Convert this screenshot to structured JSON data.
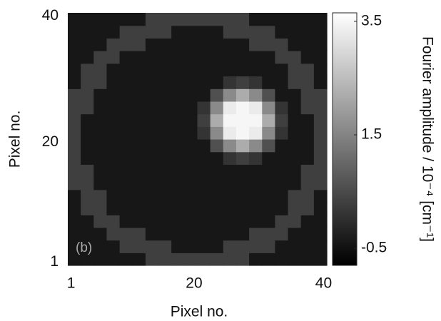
{
  "chart_data": {
    "type": "heatmap",
    "xlabel": "Pixel no.",
    "ylabel": "Pixel no.",
    "colorbar_label": "Fourier amplitude / 10⁻⁴ [cm⁻¹]",
    "annotation": "(b)",
    "xlim": [
      0.5,
      40.5
    ],
    "ylim": [
      0.5,
      40.5
    ],
    "xticks": [
      1,
      20,
      40
    ],
    "yticks": [
      1,
      20,
      40
    ],
    "clim": [
      -0.8,
      3.65
    ],
    "cticks": [
      -0.5,
      1.5,
      3.5
    ],
    "colormap": "gray",
    "grid": false,
    "z": [
      [
        -0.4,
        -0.4,
        -0.4,
        -0.4,
        -0.4,
        -0.4,
        0.3,
        0.3,
        0.3,
        0.3,
        0.3,
        0.3,
        0.3,
        0.3,
        -0.4,
        -0.4,
        -0.4,
        -0.4,
        -0.4,
        -0.4
      ],
      [
        -0.4,
        -0.4,
        -0.4,
        -0.4,
        0.3,
        0.3,
        0.3,
        0.3,
        -0.4,
        -0.4,
        -0.4,
        -0.4,
        0.3,
        0.3,
        0.3,
        0.3,
        -0.4,
        -0.4,
        -0.4,
        -0.4
      ],
      [
        -0.4,
        -0.4,
        -0.4,
        0.3,
        0.3,
        0.3,
        -0.4,
        -0.4,
        -0.4,
        -0.4,
        -0.4,
        -0.4,
        -0.4,
        -0.4,
        0.3,
        0.3,
        0.3,
        -0.4,
        -0.4,
        -0.4
      ],
      [
        -0.4,
        -0.4,
        0.3,
        0.3,
        -0.4,
        -0.4,
        -0.4,
        -0.4,
        -0.4,
        -0.4,
        -0.4,
        -0.4,
        -0.4,
        -0.4,
        -0.4,
        -0.4,
        0.3,
        0.3,
        -0.4,
        -0.4
      ],
      [
        -0.4,
        0.3,
        0.3,
        -0.4,
        -0.4,
        -0.4,
        -0.4,
        -0.4,
        -0.4,
        -0.4,
        -0.4,
        -0.4,
        -0.4,
        -0.4,
        -0.4,
        -0.4,
        -0.4,
        0.3,
        0.3,
        -0.4
      ],
      [
        -0.4,
        0.3,
        0.3,
        -0.4,
        -0.4,
        -0.4,
        -0.4,
        -0.4,
        -0.4,
        -0.4,
        -0.4,
        -0.4,
        -0.4,
        -0.4,
        -0.4,
        -0.4,
        -0.4,
        0.3,
        0.3,
        -0.4
      ],
      [
        0.3,
        0.3,
        -0.4,
        -0.4,
        -0.4,
        -0.4,
        -0.4,
        -0.4,
        -0.4,
        -0.4,
        -0.4,
        -0.4,
        -0.4,
        -0.4,
        -0.4,
        -0.4,
        -0.4,
        -0.4,
        0.3,
        0.3
      ],
      [
        0.3,
        0.3,
        -0.4,
        -0.4,
        -0.4,
        -0.4,
        -0.4,
        -0.4,
        -0.4,
        -0.4,
        -0.4,
        -0.4,
        -0.4,
        -0.4,
        -0.4,
        -0.4,
        -0.4,
        -0.4,
        0.3,
        0.3
      ],
      [
        0.3,
        -0.4,
        -0.4,
        -0.4,
        -0.4,
        -0.4,
        -0.4,
        -0.4,
        -0.4,
        -0.4,
        -0.4,
        -0.4,
        0.1,
        0.3,
        0.1,
        -0.4,
        -0.4,
        -0.4,
        -0.4,
        0.3
      ],
      [
        0.3,
        -0.4,
        -0.4,
        -0.4,
        -0.4,
        -0.4,
        -0.4,
        -0.4,
        -0.4,
        -0.4,
        -0.4,
        0.6,
        1.6,
        2.2,
        1.6,
        0.6,
        -0.4,
        -0.4,
        -0.4,
        0.3
      ],
      [
        0.3,
        -0.4,
        -0.4,
        -0.4,
        -0.4,
        -0.4,
        -0.4,
        -0.4,
        -0.4,
        -0.4,
        0.1,
        1.6,
        3.3,
        3.5,
        3.3,
        1.6,
        0.1,
        -0.4,
        -0.4,
        0.3
      ],
      [
        0.3,
        -0.4,
        -0.4,
        -0.4,
        -0.4,
        -0.4,
        -0.4,
        -0.4,
        -0.4,
        -0.4,
        0.3,
        2.2,
        3.5,
        3.5,
        3.5,
        2.2,
        0.3,
        -0.4,
        -0.4,
        0.3
      ],
      [
        0.3,
        0.3,
        -0.4,
        -0.4,
        -0.4,
        -0.4,
        -0.4,
        -0.4,
        -0.4,
        -0.4,
        0.1,
        1.6,
        3.3,
        3.5,
        3.3,
        1.6,
        0.1,
        -0.4,
        0.3,
        0.3
      ],
      [
        0.3,
        0.3,
        -0.4,
        -0.4,
        -0.4,
        -0.4,
        -0.4,
        -0.4,
        -0.4,
        -0.4,
        -0.4,
        0.6,
        1.6,
        2.2,
        1.6,
        0.6,
        -0.4,
        -0.4,
        0.3,
        0.3
      ],
      [
        -0.4,
        0.3,
        0.3,
        -0.4,
        -0.4,
        -0.4,
        -0.4,
        -0.4,
        -0.4,
        -0.4,
        -0.4,
        -0.4,
        0.1,
        0.3,
        0.1,
        -0.4,
        -0.4,
        0.3,
        0.3,
        -0.4
      ],
      [
        -0.4,
        0.3,
        0.3,
        -0.4,
        -0.4,
        -0.4,
        -0.4,
        -0.4,
        -0.4,
        -0.4,
        -0.4,
        -0.4,
        -0.4,
        -0.4,
        -0.4,
        -0.4,
        -0.4,
        0.3,
        0.3,
        -0.4
      ],
      [
        -0.4,
        -0.4,
        0.3,
        0.3,
        -0.4,
        -0.4,
        -0.4,
        -0.4,
        -0.4,
        -0.4,
        -0.4,
        -0.4,
        -0.4,
        -0.4,
        -0.4,
        -0.4,
        0.3,
        0.3,
        -0.4,
        -0.4
      ],
      [
        -0.4,
        -0.4,
        -0.4,
        0.3,
        0.3,
        0.3,
        -0.4,
        -0.4,
        -0.4,
        -0.4,
        -0.4,
        -0.4,
        -0.4,
        -0.4,
        0.3,
        0.3,
        0.3,
        -0.4,
        -0.4,
        -0.4
      ],
      [
        -0.4,
        -0.4,
        -0.4,
        -0.4,
        0.3,
        0.3,
        0.3,
        0.3,
        -0.4,
        -0.4,
        -0.4,
        -0.4,
        0.3,
        0.3,
        0.3,
        0.3,
        -0.4,
        -0.4,
        -0.4,
        -0.4
      ],
      [
        -0.4,
        -0.4,
        -0.4,
        -0.4,
        -0.4,
        -0.4,
        0.3,
        0.3,
        0.3,
        0.3,
        0.3,
        0.3,
        0.3,
        0.3,
        -0.4,
        -0.4,
        -0.4,
        -0.4,
        -0.4,
        -0.4
      ]
    ]
  }
}
